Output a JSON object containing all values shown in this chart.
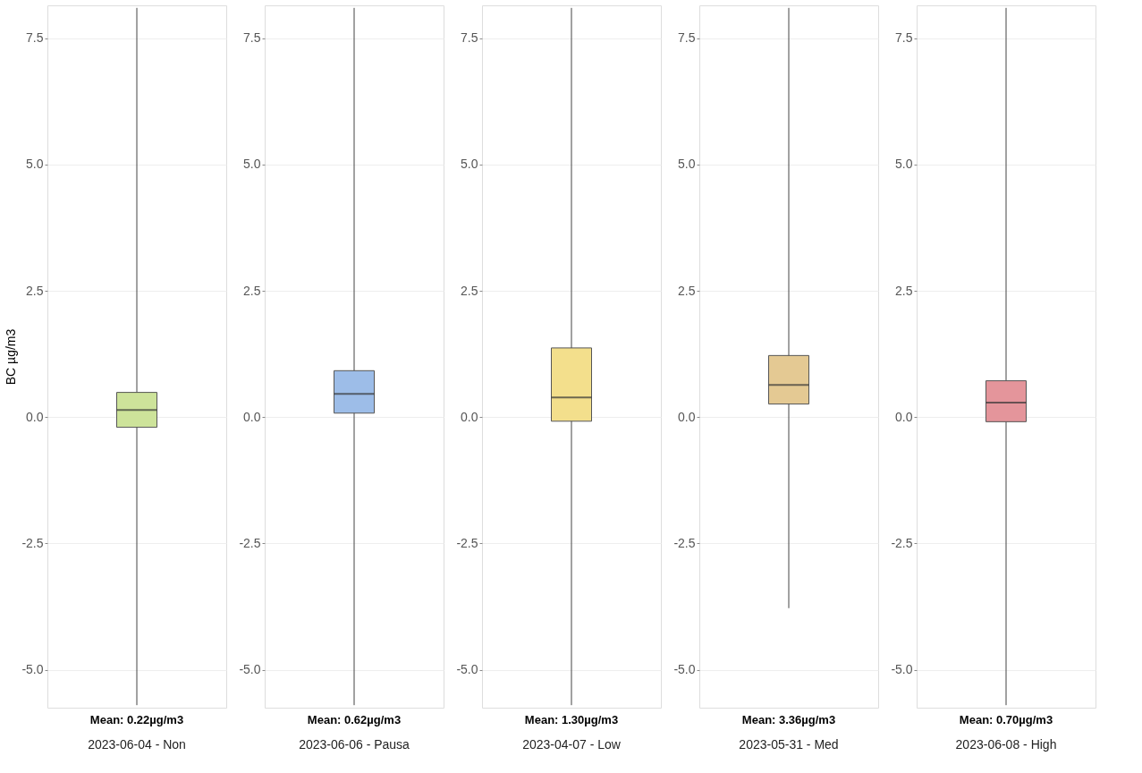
{
  "chart_data": [
    {
      "type": "box",
      "categories": [
        "2023-06-04 - Non"
      ],
      "ylabel": "BC µg/m3",
      "color": "#cde39a",
      "boxes": [
        {
          "low": -5.7,
          "q1": -0.2,
          "median": 0.14,
          "q3": 0.49,
          "high": 8.1
        }
      ],
      "ylim": [
        -5.75,
        8.15
      ],
      "yticks": [
        {
          "value": -5,
          "label": "-5.0"
        },
        -2.5,
        {
          "value": 0,
          "label": "0.0"
        },
        2.5,
        {
          "value": 5,
          "label": "5.0"
        },
        7.5
      ],
      "grid": "y",
      "annotations": [
        "Mean: 0.22µg/m3"
      ]
    },
    {
      "type": "box",
      "categories": [
        "2023-06-06 - Pausa"
      ],
      "color": "#9dbde8",
      "boxes": [
        {
          "low": -5.7,
          "q1": 0.08,
          "median": 0.46,
          "q3": 0.92,
          "high": 8.1
        }
      ],
      "ylim": [
        -5.75,
        8.15
      ],
      "yticks": [
        {
          "value": -5,
          "label": "-5.0"
        },
        -2.5,
        {
          "value": 0,
          "label": "0.0"
        },
        2.5,
        {
          "value": 5,
          "label": "5.0"
        },
        7.5
      ],
      "grid": "y",
      "annotations": [
        "Mean: 0.62µg/m3"
      ]
    },
    {
      "type": "box",
      "categories": [
        "2023-04-07  - Low"
      ],
      "color": "#f3df8c",
      "boxes": [
        {
          "low": -5.7,
          "q1": -0.08,
          "median": 0.39,
          "q3": 1.37,
          "high": 8.1
        }
      ],
      "ylim": [
        -5.75,
        8.15
      ],
      "yticks": [
        {
          "value": -5,
          "label": "-5.0"
        },
        -2.5,
        {
          "value": 0,
          "label": "0.0"
        },
        2.5,
        {
          "value": 5,
          "label": "5.0"
        },
        7.5
      ],
      "grid": "y",
      "annotations": [
        "Mean: 1.30µg/m3"
      ]
    },
    {
      "type": "box",
      "categories": [
        "2023-05-31 - Med"
      ],
      "color": "#e4c993",
      "boxes": [
        {
          "low": -3.78,
          "q1": 0.26,
          "median": 0.64,
          "q3": 1.22,
          "high": 8.1
        }
      ],
      "ylim": [
        -5.75,
        8.15
      ],
      "yticks": [
        {
          "value": -5,
          "label": "-5.0"
        },
        -2.5,
        {
          "value": 0,
          "label": "0.0"
        },
        2.5,
        {
          "value": 5,
          "label": "5.0"
        },
        7.5
      ],
      "grid": "y",
      "annotations": [
        "Mean: 3.36µg/m3"
      ]
    },
    {
      "type": "box",
      "categories": [
        "2023-06-08 - High"
      ],
      "color": "#e4959b",
      "boxes": [
        {
          "low": -5.7,
          "q1": -0.09,
          "median": 0.29,
          "q3": 0.72,
          "high": 8.1
        }
      ],
      "ylim": [
        -5.75,
        8.15
      ],
      "yticks": [
        {
          "value": -5,
          "label": "-5.0"
        },
        -2.5,
        {
          "value": 0,
          "label": "0.0"
        },
        2.5,
        {
          "value": 5,
          "label": "5.0"
        },
        7.5
      ],
      "grid": "y",
      "annotations": [
        "Mean: 0.70µg/m3"
      ]
    }
  ]
}
